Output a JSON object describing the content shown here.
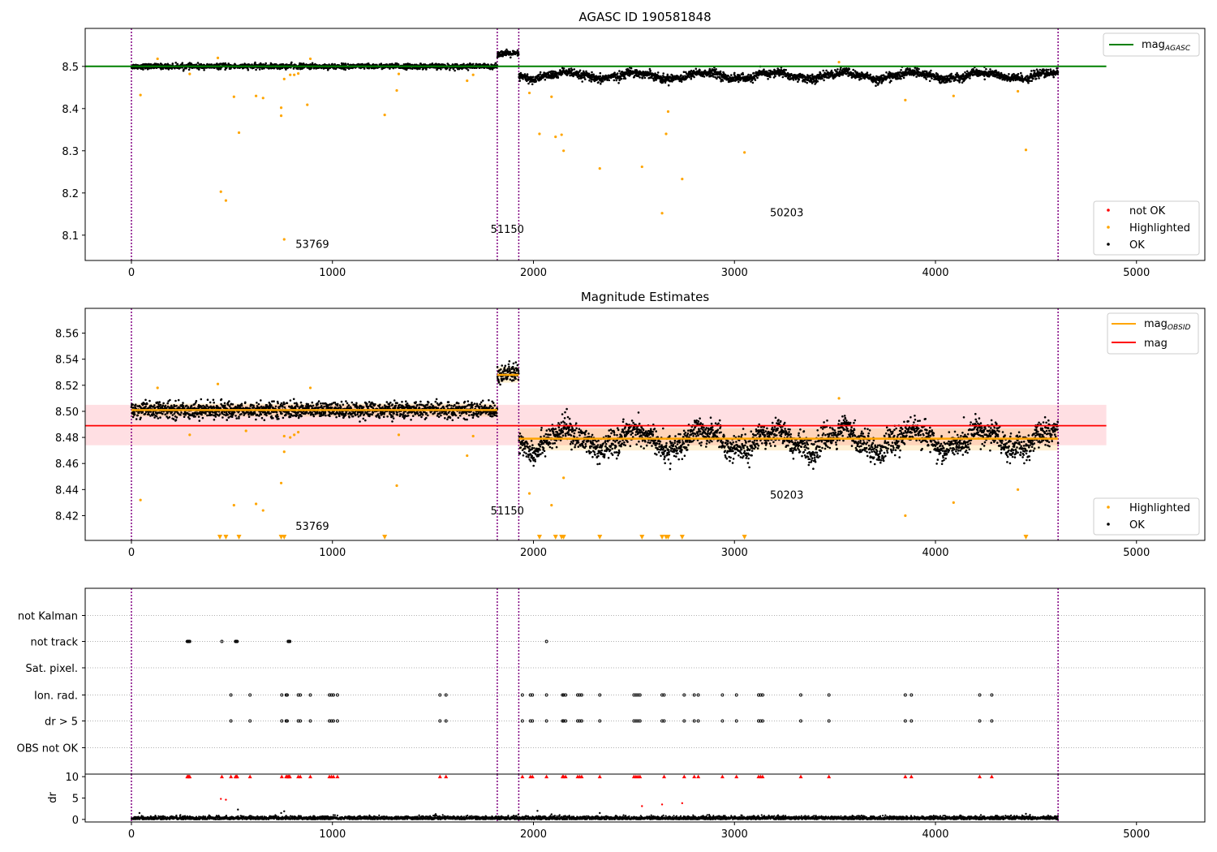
{
  "chart_data": [
    {
      "type": "scatter",
      "title": "AGASC ID 190581848",
      "xlabel": "",
      "ylabel": "",
      "xlim": [
        -230,
        5340
      ],
      "ylim": [
        8.04,
        8.59
      ],
      "xticks": [
        0,
        1000,
        2000,
        3000,
        4000,
        5000
      ],
      "yticks": [
        8.1,
        8.2,
        8.3,
        8.4,
        8.5
      ],
      "ytick_labels": [
        "8.1",
        "8.2",
        "8.3",
        "8.4",
        "8.5"
      ],
      "obsid_boundaries": [
        0,
        1820,
        1927,
        4610
      ],
      "obsid_labels": [
        {
          "x": 900,
          "y": 8.07,
          "text": "53769"
        },
        {
          "x": 1870,
          "y": 8.105,
          "text": "51150"
        },
        {
          "x": 3260,
          "y": 8.145,
          "text": "50203"
        }
      ],
      "lines": [
        {
          "name": "mag",
          "subscript": "AGASC",
          "color": "#008000",
          "x": [
            -230,
            4850
          ],
          "y": [
            8.5,
            8.5
          ]
        }
      ],
      "segments": [
        {
          "x_start": 0,
          "x_end": 1820,
          "mean": 8.5,
          "scatter": 0.005
        },
        {
          "x_start": 1820,
          "x_end": 1927,
          "mean": 8.53,
          "scatter": 0.006
        },
        {
          "x_start": 1927,
          "x_end": 4610,
          "mean": 8.478,
          "scatter": 0.008
        }
      ],
      "highlighted_points": [
        [
          45,
          8.432
        ],
        [
          130,
          8.518
        ],
        [
          290,
          8.482
        ],
        [
          430,
          8.52
        ],
        [
          445,
          8.203
        ],
        [
          470,
          8.182
        ],
        [
          510,
          8.428
        ],
        [
          535,
          8.343
        ],
        [
          620,
          8.43
        ],
        [
          655,
          8.425
        ],
        [
          745,
          8.402
        ],
        [
          745,
          8.383
        ],
        [
          760,
          8.47
        ],
        [
          760,
          8.09
        ],
        [
          790,
          8.48
        ],
        [
          810,
          8.48
        ],
        [
          830,
          8.483
        ],
        [
          875,
          8.409
        ],
        [
          890,
          8.518
        ],
        [
          1260,
          8.385
        ],
        [
          1320,
          8.443
        ],
        [
          1330,
          8.482
        ],
        [
          1670,
          8.466
        ],
        [
          1700,
          8.48
        ],
        [
          1980,
          8.437
        ],
        [
          2030,
          8.34
        ],
        [
          2090,
          8.428
        ],
        [
          2110,
          8.333
        ],
        [
          2140,
          8.338
        ],
        [
          2150,
          8.3
        ],
        [
          2330,
          8.258
        ],
        [
          2540,
          8.262
        ],
        [
          2640,
          8.152
        ],
        [
          2660,
          8.34
        ],
        [
          2670,
          8.393
        ],
        [
          2740,
          8.233
        ],
        [
          3050,
          8.296
        ],
        [
          3520,
          8.51
        ],
        [
          3850,
          8.42
        ],
        [
          4090,
          8.43
        ],
        [
          4410,
          8.441
        ],
        [
          4450,
          8.302
        ]
      ],
      "legend": [
        {
          "label": "not OK",
          "color": "#ff0000"
        },
        {
          "label": "Highlighted",
          "color": "#ffa500"
        },
        {
          "label": "OK",
          "color": "#000000"
        }
      ],
      "legend_placement": [
        "upper right",
        "lower right"
      ]
    },
    {
      "type": "scatter",
      "title": "Magnitude Estimates",
      "xlabel": "",
      "ylabel": "",
      "xlim": [
        -230,
        5340
      ],
      "ylim": [
        8.401,
        8.579
      ],
      "xticks": [
        0,
        1000,
        2000,
        3000,
        4000,
        5000
      ],
      "yticks": [
        8.42,
        8.44,
        8.46,
        8.48,
        8.5,
        8.52,
        8.54,
        8.56
      ],
      "ytick_labels": [
        "8.42",
        "8.44",
        "8.46",
        "8.48",
        "8.50",
        "8.52",
        "8.54",
        "8.56"
      ],
      "obsid_boundaries": [
        0,
        1820,
        1927,
        4610
      ],
      "obsid_labels": [
        {
          "x": 900,
          "y": 8.409,
          "text": "53769"
        },
        {
          "x": 1870,
          "y": 8.421,
          "text": "51150"
        },
        {
          "x": 3260,
          "y": 8.433,
          "text": "50203"
        }
      ],
      "lines": [
        {
          "name": "mag",
          "subscript": "OBSID",
          "color": "#ffa500"
        },
        {
          "name": "mag",
          "color": "#ff0000",
          "x": [
            -230,
            4850
          ],
          "y": [
            8.489,
            8.489
          ]
        }
      ],
      "mag_band": {
        "x": [
          -230,
          4850
        ],
        "y": [
          8.474,
          8.505
        ],
        "color": "#ffc0c8"
      },
      "obsid_mags": [
        {
          "x_start": 0,
          "x_end": 1820,
          "mag": 8.501,
          "band": [
            8.496,
            8.506
          ]
        },
        {
          "x_start": 1820,
          "x_end": 1927,
          "mag": 8.528,
          "band": [
            8.522,
            8.534
          ]
        },
        {
          "x_start": 1927,
          "x_end": 4610,
          "mag": 8.479,
          "band": [
            8.47,
            8.487
          ]
        }
      ],
      "segments": [
        {
          "x_start": 0,
          "x_end": 1820,
          "mean": 8.501,
          "scatter": 0.005
        },
        {
          "x_start": 1820,
          "x_end": 1927,
          "mean": 8.529,
          "scatter": 0.006
        },
        {
          "x_start": 1927,
          "x_end": 4610,
          "mean": 8.478,
          "scatter": 0.008
        }
      ],
      "highlighted_points": [
        [
          45,
          8.432
        ],
        [
          130,
          8.518
        ],
        [
          290,
          8.482
        ],
        [
          430,
          8.521
        ],
        [
          510,
          8.428
        ],
        [
          570,
          8.485
        ],
        [
          620,
          8.429
        ],
        [
          655,
          8.424
        ],
        [
          745,
          8.445
        ],
        [
          760,
          8.469
        ],
        [
          760,
          8.481
        ],
        [
          790,
          8.48
        ],
        [
          810,
          8.482
        ],
        [
          830,
          8.484
        ],
        [
          890,
          8.518
        ],
        [
          1320,
          8.443
        ],
        [
          1330,
          8.482
        ],
        [
          1670,
          8.466
        ],
        [
          1700,
          8.481
        ],
        [
          1980,
          8.437
        ],
        [
          2090,
          8.428
        ],
        [
          2150,
          8.449
        ],
        [
          3520,
          8.51
        ],
        [
          3850,
          8.42
        ],
        [
          4090,
          8.43
        ],
        [
          4410,
          8.44
        ]
      ],
      "offscale_markers_x": [
        440,
        470,
        535,
        745,
        760,
        1260,
        2030,
        2110,
        2140,
        2150,
        2330,
        2540,
        2640,
        2660,
        2670,
        2740,
        3050,
        4450
      ],
      "legend": [
        {
          "label": "Highlighted",
          "color": "#ffa500"
        },
        {
          "label": "OK",
          "color": "#000000"
        }
      ],
      "legend_placement": [
        "upper right",
        "lower right"
      ]
    },
    {
      "type": "scatter",
      "title": "",
      "xlabel": "",
      "ylabel": "",
      "xlim": [
        -230,
        5340
      ],
      "obsid_boundaries": [
        0,
        1820,
        1927,
        4610
      ],
      "flag_categories": [
        "not Kalman",
        "not track",
        "Sat. pixel.",
        "Ion. rad.",
        "dr > 5",
        "OBS not OK"
      ],
      "flag_events": {
        "not track": [
          278,
          282,
          286,
          290,
          450,
          518,
          522,
          526,
          780,
          784,
          788,
          2065
        ],
        "Ion. rad.": [
          495,
          590,
          748,
          770,
          775,
          830,
          840,
          890,
          985,
          995,
          1005,
          1025,
          1535,
          1565,
          1945,
          1985,
          1995,
          2065,
          2145,
          2150,
          2160,
          2220,
          2230,
          2240,
          2330,
          2500,
          2510,
          2520,
          2530,
          2640,
          2650,
          2750,
          2800,
          2820,
          2940,
          3010,
          3120,
          3130,
          3140,
          3330,
          3470,
          3850,
          3880,
          4220,
          4280
        ],
        "dr > 5": [
          495,
          590,
          748,
          770,
          775,
          830,
          840,
          890,
          985,
          995,
          1005,
          1025,
          1535,
          1565,
          1945,
          1985,
          1995,
          2065,
          2145,
          2150,
          2160,
          2220,
          2230,
          2240,
          2330,
          2500,
          2510,
          2520,
          2530,
          2640,
          2650,
          2750,
          2800,
          2820,
          2940,
          3010,
          3120,
          3130,
          3140,
          3330,
          3470,
          3850,
          3880,
          4220,
          4280
        ]
      }
    },
    {
      "type": "scatter",
      "title": "",
      "xlabel": "",
      "ylabel": "dr",
      "xlim": [
        -230,
        5340
      ],
      "ylim": [
        -0.6,
        10.6
      ],
      "xticks": [
        0,
        1000,
        2000,
        3000,
        4000,
        5000
      ],
      "yticks": [
        0,
        5,
        10
      ],
      "obsid_boundaries": [
        0,
        1820,
        1927,
        4610
      ],
      "clipped_value": 10,
      "clipped_x": [
        278,
        282,
        286,
        290,
        450,
        495,
        518,
        522,
        526,
        590,
        748,
        770,
        775,
        780,
        784,
        788,
        830,
        840,
        890,
        985,
        995,
        1005,
        1025,
        1535,
        1565,
        1945,
        1985,
        1995,
        2065,
        2145,
        2150,
        2160,
        2220,
        2230,
        2240,
        2330,
        2500,
        2510,
        2520,
        2530,
        2650,
        2750,
        2800,
        2820,
        2940,
        3010,
        3120,
        3130,
        3140,
        3330,
        3470,
        3850,
        3880,
        4220,
        4280
      ],
      "red_points": [
        [
          445,
          4.8
        ],
        [
          470,
          4.6
        ],
        [
          2540,
          3.1
        ],
        [
          2640,
          3.5
        ],
        [
          2740,
          3.8
        ]
      ],
      "black_points": [
        [
          40,
          1.5
        ],
        [
          530,
          2.3
        ],
        [
          745,
          1.5
        ],
        [
          760,
          1.9
        ],
        [
          2020,
          2.0
        ],
        [
          2090,
          1.2
        ],
        [
          2130,
          1.0
        ],
        [
          2330,
          1.5
        ],
        [
          4450,
          1.3
        ]
      ],
      "baseline": {
        "mean": 0.3,
        "scatter": 0.25
      }
    }
  ]
}
